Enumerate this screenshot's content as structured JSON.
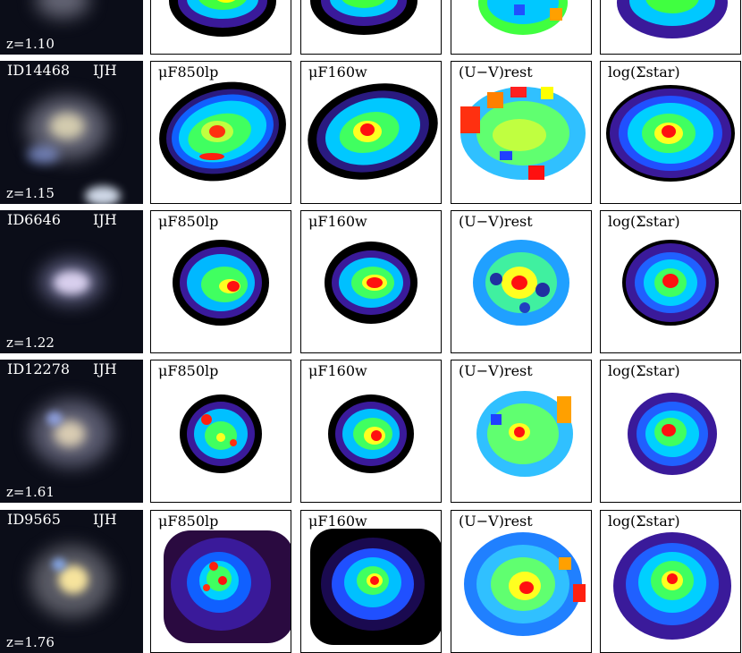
{
  "rows": [
    {
      "id": "",
      "bands": "",
      "z": "z=1.10",
      "labels": [
        "",
        "",
        "",
        ""
      ]
    },
    {
      "id": "ID14468",
      "bands": "IJH",
      "z": "z=1.15",
      "labels": [
        "μF850lp",
        "μF160w",
        "(U−V)rest",
        "log(Σstar)"
      ]
    },
    {
      "id": "ID6646",
      "bands": "IJH",
      "z": "z=1.22",
      "labels": [
        "μF850lp",
        "μF160w",
        "(U−V)rest",
        "log(Σstar)"
      ]
    },
    {
      "id": "ID12278",
      "bands": "IJH",
      "z": "z=1.61",
      "labels": [
        "μF850lp",
        "μF160w",
        "(U−V)rest",
        "log(Σstar)"
      ]
    },
    {
      "id": "ID9565",
      "bands": "IJH",
      "z": "z=1.76",
      "labels": [
        "μF850lp",
        "μF160w",
        "(U−V)rest",
        "log(Σstar)"
      ]
    }
  ],
  "colors": {
    "background": "#ffffff",
    "thumb_bg": "#0b0d18",
    "map_edge": "#000000"
  }
}
